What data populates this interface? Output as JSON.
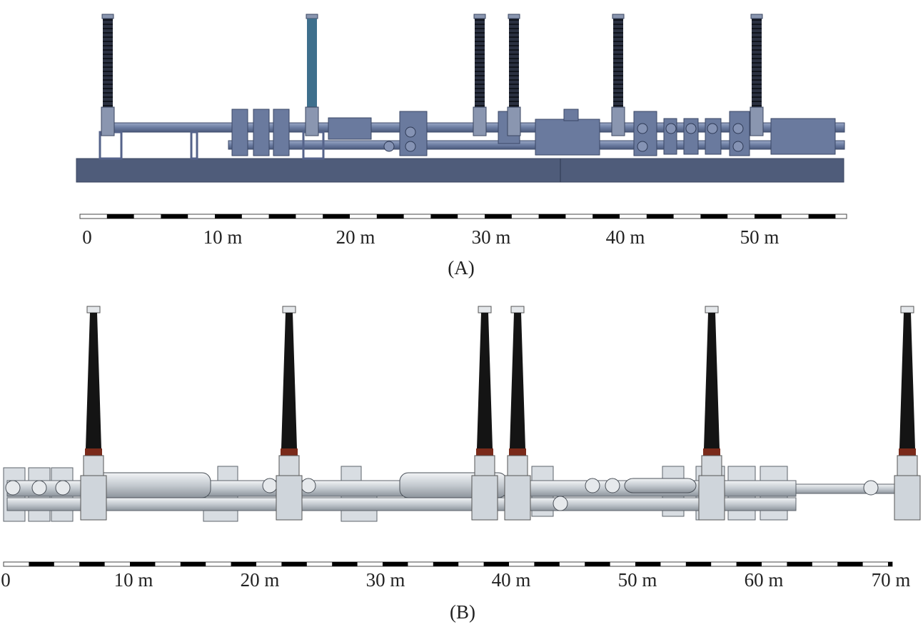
{
  "panels": [
    {
      "scale_labels": [
        "0",
        "10 m",
        "20 m",
        "30 m",
        "40 m",
        "50 m"
      ],
      "caption": "(A)"
    },
    {
      "scale_labels": [
        "0",
        "10 m",
        "20 m",
        "30 m",
        "40 m",
        "50 m",
        "60 m",
        "70 m"
      ],
      "caption": "(B)"
    }
  ]
}
